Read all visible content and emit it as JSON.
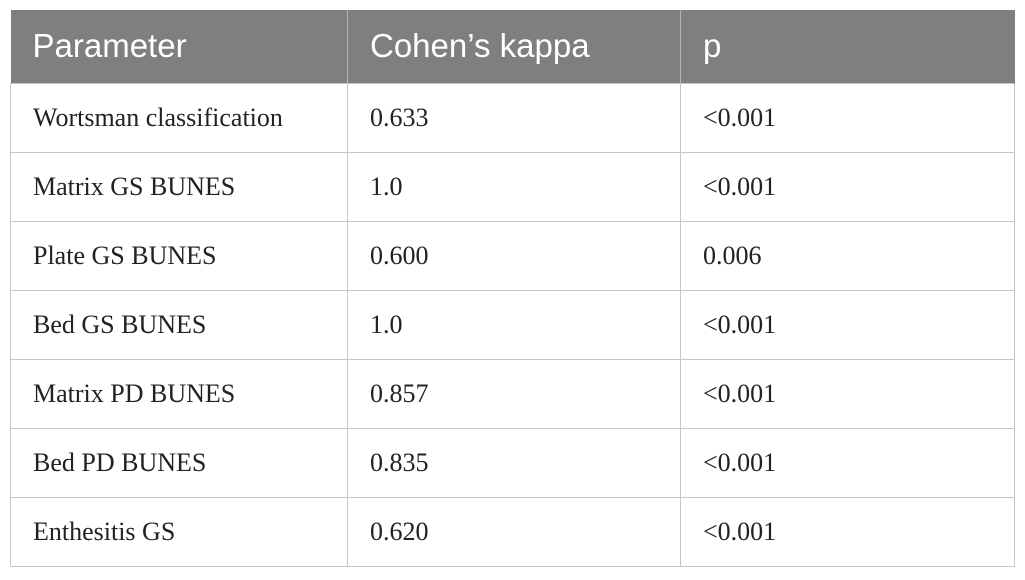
{
  "table": {
    "headers": [
      "Parameter",
      "Cohen’s kappa",
      "p"
    ],
    "rows": [
      [
        "Wortsman classification",
        "0.633",
        "<0.001"
      ],
      [
        "Matrix GS BUNES",
        "1.0",
        "<0.001"
      ],
      [
        "Plate GS BUNES",
        "0.600",
        "0.006"
      ],
      [
        "Bed GS BUNES",
        "1.0",
        "<0.001"
      ],
      [
        "Matrix PD BUNES",
        "0.857",
        "<0.001"
      ],
      [
        "Bed PD BUNES",
        "0.835",
        "<0.001"
      ],
      [
        "Enthesitis GS",
        "0.620",
        "<0.001"
      ]
    ]
  }
}
